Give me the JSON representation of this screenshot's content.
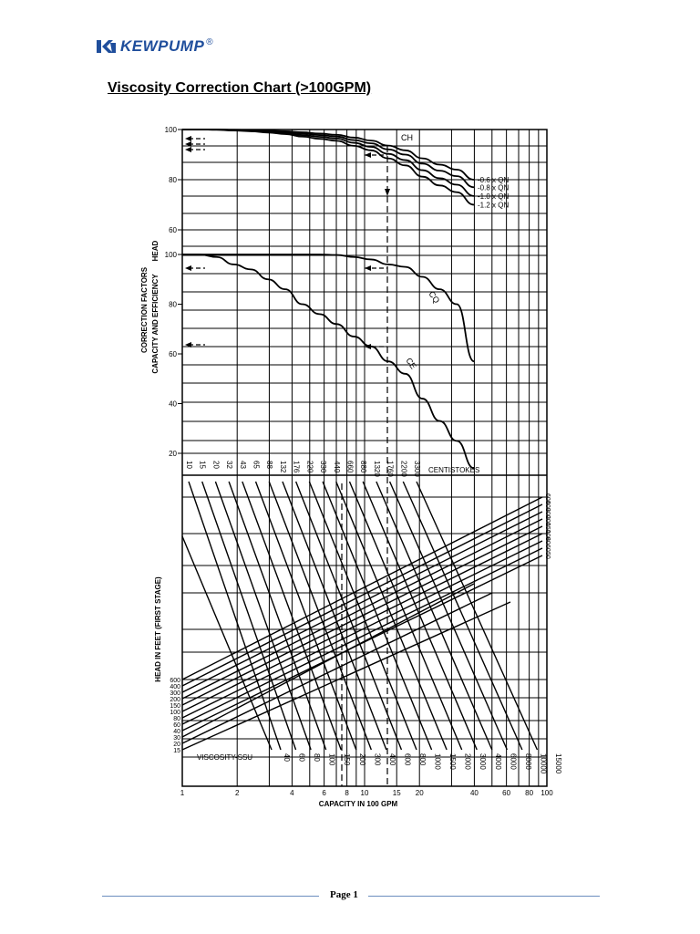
{
  "header": {
    "brand": "KEWPUMP",
    "registered": "®"
  },
  "page_title": "Viscosity Correction Chart (>100GPM)",
  "footer": {
    "page_label": "Page 1"
  },
  "colors": {
    "brand": "#1f4e9c",
    "footer_line": "#6c8ebf"
  },
  "chart_data": {
    "type": "line",
    "upper": {
      "ylabel_head": "HEAD",
      "ylabel_factors": "CORRECTION FACTORS",
      "ylabel_cap_eff": "CAPACITY AND EFFICIENCY",
      "head_ticks": [
        100,
        80,
        60
      ],
      "cap_eff_ticks": [
        100,
        80,
        60,
        40,
        20
      ],
      "x_data": [
        10,
        15,
        20,
        32,
        43,
        65,
        88,
        132,
        176,
        220,
        330,
        440,
        660,
        880,
        1320,
        1760,
        2200,
        3300
      ],
      "series": [
        {
          "name": "CH",
          "label": "0.6 x QN",
          "values": [
            100,
            100,
            100,
            99.9,
            99.8,
            99.6,
            99.3,
            98.9,
            98.4,
            97.9,
            96.8,
            95.6,
            93.6,
            91.7,
            88.5,
            86.0,
            84.0,
            80.0
          ]
        },
        {
          "name": "",
          "label": "0.8 x QN",
          "values": [
            100,
            100,
            100,
            99.8,
            99.7,
            99.4,
            99.0,
            98.4,
            97.8,
            97.2,
            95.8,
            94.5,
            92.1,
            90.0,
            86.4,
            83.6,
            81.4,
            77.0
          ]
        },
        {
          "name": "",
          "label": "1.0 x QN",
          "values": [
            100,
            100,
            99.9,
            99.7,
            99.5,
            99.1,
            98.6,
            97.8,
            97.1,
            96.4,
            94.7,
            93.1,
            90.3,
            87.8,
            83.8,
            80.6,
            78.0,
            73.5
          ]
        },
        {
          "name": "",
          "label": "1.2 x QN",
          "values": [
            100,
            100,
            99.9,
            99.6,
            99.3,
            98.8,
            98.2,
            97.2,
            96.3,
            95.5,
            93.5,
            91.7,
            88.5,
            85.7,
            81.2,
            77.7,
            75.0,
            70.0
          ]
        },
        {
          "name": "CQ",
          "label": "",
          "values": [
            100,
            100,
            100,
            100,
            100,
            100,
            100,
            100,
            100,
            99.8,
            99.0,
            98.0,
            96.0,
            95.0,
            91.0,
            86.0,
            80.0,
            57.0
          ]
        },
        {
          "name": "CE",
          "label": "",
          "values": [
            100,
            100,
            99.0,
            96.0,
            94.0,
            90.0,
            86.0,
            80.0,
            76.0,
            72.0,
            67.0,
            63.0,
            57.0,
            52.0,
            42.0,
            33.0,
            25.0,
            14.0
          ]
        }
      ]
    },
    "lower": {
      "xlabel": "CAPACITY IN 100 GPM",
      "ylabel": "HEAD IN FEET (FIRST STAGE)",
      "x_ticks": [
        "1",
        "2",
        "4",
        "6",
        "8",
        "10",
        "15",
        "20",
        "40",
        "60",
        "80",
        "100"
      ],
      "centistokes_label": "CENTISTOKES",
      "centistokes": [
        "10",
        "15",
        "20",
        "32",
        "43",
        "65",
        "88",
        "132",
        "176",
        "220",
        "330",
        "440",
        "660",
        "880",
        "1320",
        "1760",
        "2200",
        "3300"
      ],
      "viscosity_label": "VISCOSITY-SSU",
      "ssu": [
        "40",
        "60",
        "80",
        "100",
        "150",
        "200",
        "300",
        "400",
        "600",
        "800",
        "1000",
        "1500",
        "2000",
        "3000",
        "4000",
        "6000",
        "8000",
        "10000",
        "15000"
      ],
      "head_left": [
        "600",
        "400",
        "300",
        "200",
        "150",
        "100",
        "80",
        "60",
        "40",
        "30",
        "20",
        "15"
      ],
      "head_right": [
        "600",
        "400",
        "300",
        "200",
        "150",
        "100",
        "80",
        "60",
        "50"
      ]
    }
  }
}
